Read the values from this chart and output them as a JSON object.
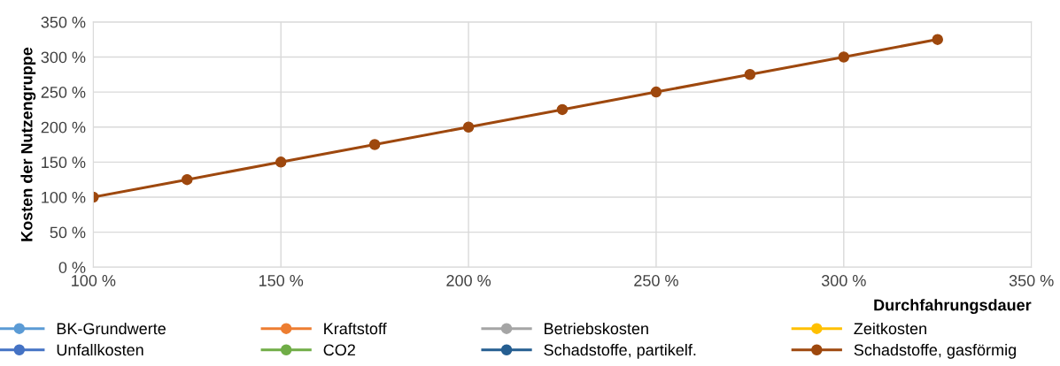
{
  "chart_data": {
    "type": "line",
    "xlabel": "Durchfahrungsdauer",
    "ylabel": "Kosten der Nutzengruppe",
    "x": [
      100,
      125,
      150,
      175,
      200,
      225,
      250,
      275,
      300,
      325
    ],
    "series": [
      {
        "name": "BK-Grundwerte",
        "color": "#5b9bd5",
        "values": [
          null,
          null,
          null,
          null,
          null,
          null,
          null,
          null,
          null,
          null
        ]
      },
      {
        "name": "Kraftstoff",
        "color": "#ed7d31",
        "values": [
          null,
          null,
          null,
          null,
          null,
          null,
          null,
          null,
          null,
          null
        ]
      },
      {
        "name": "Betriebskosten",
        "color": "#a5a5a5",
        "values": [
          null,
          null,
          null,
          null,
          null,
          null,
          null,
          null,
          null,
          null
        ]
      },
      {
        "name": "Zeitkosten",
        "color": "#ffc000",
        "values": [
          null,
          null,
          null,
          null,
          null,
          null,
          null,
          null,
          null,
          null
        ]
      },
      {
        "name": "Unfallkosten",
        "color": "#4472c4",
        "values": [
          null,
          null,
          null,
          null,
          null,
          null,
          null,
          null,
          null,
          null
        ]
      },
      {
        "name": "CO2",
        "color": "#70ad47",
        "values": [
          null,
          null,
          null,
          null,
          null,
          null,
          null,
          null,
          null,
          null
        ]
      },
      {
        "name": "Schadstoffe, partikelf.",
        "color": "#255e91",
        "values": [
          null,
          null,
          null,
          null,
          null,
          null,
          null,
          null,
          null,
          null
        ]
      },
      {
        "name": "Schadstoffe, gasförmig",
        "color": "#9e480e",
        "values": [
          100,
          125,
          150,
          175,
          200,
          225,
          250,
          275,
          300,
          325
        ]
      }
    ],
    "xlim": [
      100,
      350
    ],
    "xticks": [
      {
        "value": 100,
        "label": "100 %"
      },
      {
        "value": 150,
        "label": "150 %"
      },
      {
        "value": 200,
        "label": "200 %"
      },
      {
        "value": 250,
        "label": "250 %"
      },
      {
        "value": 300,
        "label": "300 %"
      },
      {
        "value": 350,
        "label": "350 %"
      }
    ],
    "ylim": [
      0,
      350
    ],
    "yticks": [
      {
        "value": 0,
        "label": "0 %"
      },
      {
        "value": 50,
        "label": "50 %"
      },
      {
        "value": 100,
        "label": "100 %"
      },
      {
        "value": 150,
        "label": "150 %"
      },
      {
        "value": 200,
        "label": "200 %"
      },
      {
        "value": 250,
        "label": "250 %"
      },
      {
        "value": 300,
        "label": "300 %"
      },
      {
        "value": 350,
        "label": "350 %"
      }
    ],
    "grid": true,
    "legend": "bottom",
    "marker": "circle",
    "line_style": "solid"
  }
}
